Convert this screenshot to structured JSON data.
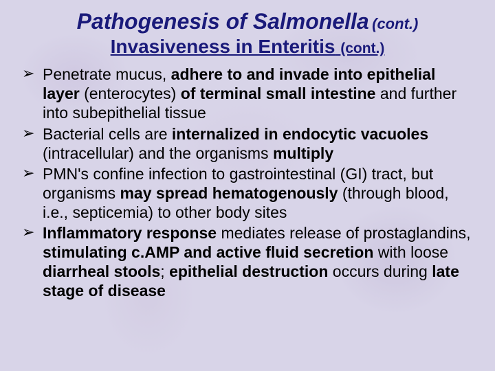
{
  "title": {
    "main": "Pathogenesis of Salmonella",
    "cont": "(cont.)"
  },
  "subtitle": {
    "main": "Invasiveness in Enteritis",
    "cont": "(cont.)"
  },
  "bullets": [
    {
      "segments": [
        {
          "t": "Penetrate mucus, ",
          "b": false
        },
        {
          "t": "adhere to and invade into epithelial layer ",
          "b": true
        },
        {
          "t": "(enterocytes) ",
          "b": false
        },
        {
          "t": "of terminal small intestine ",
          "b": true
        },
        {
          "t": "and further into subepithelial tissue",
          "b": false
        }
      ]
    },
    {
      "segments": [
        {
          "t": "Bacterial cells are ",
          "b": false
        },
        {
          "t": "internalized in endocytic vacuoles ",
          "b": true
        },
        {
          "t": "(intracellular) and the organisms ",
          "b": false
        },
        {
          "t": "multiply",
          "b": true
        }
      ]
    },
    {
      "segments": [
        {
          "t": "PMN's confine infection to gastrointestinal (GI) tract, but organisms ",
          "b": false
        },
        {
          "t": "may spread hematogenously ",
          "b": true
        },
        {
          "t": "(through blood, i.e., septicemia) to other body sites",
          "b": false
        }
      ]
    },
    {
      "segments": [
        {
          "t": "Inflammatory response ",
          "b": true
        },
        {
          "t": "mediates release of prostaglandins, ",
          "b": false
        },
        {
          "t": "stimulating c.AMP and active fluid secretion ",
          "b": true
        },
        {
          "t": "with loose ",
          "b": false
        },
        {
          "t": "diarrheal stools",
          "b": true
        },
        {
          "t": "; ",
          "b": false
        },
        {
          "t": "epithelial destruction ",
          "b": true
        },
        {
          "t": "occurs during ",
          "b": false
        },
        {
          "t": "late stage of disease",
          "b": true
        }
      ]
    }
  ],
  "style": {
    "background_base": "#d8d4e8",
    "text_color_heading": "#1a1a7a",
    "text_color_body": "#000000",
    "title_fontsize": 32,
    "subtitle_fontsize": 28,
    "body_fontsize": 23,
    "bullet_glyph": "➢",
    "font_family": "Arial"
  }
}
